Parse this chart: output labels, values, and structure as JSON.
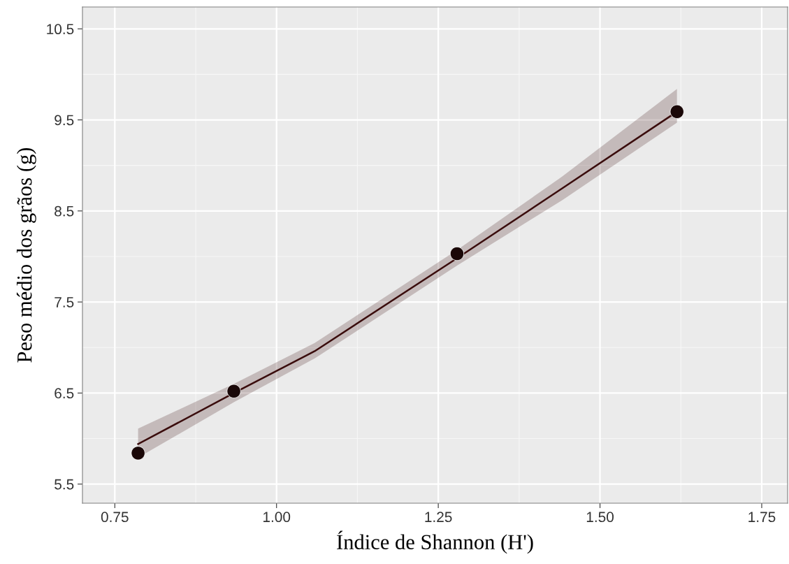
{
  "chart_data": {
    "type": "line",
    "xlabel": "Índice de Shannon (H')",
    "ylabel": "Peso médio dos grãos (g)",
    "xlim": [
      0.7,
      1.79
    ],
    "ylim": [
      5.29,
      10.74
    ],
    "xticks": [
      {
        "value": 0.75,
        "label": "0.75"
      },
      {
        "value": 1.0,
        "label": "1.00"
      },
      {
        "value": 1.25,
        "label": "1.25"
      },
      {
        "value": 1.5,
        "label": "1.50"
      },
      {
        "value": 1.75,
        "label": "1.75"
      }
    ],
    "yticks": [
      5.5,
      6.5,
      7.5,
      8.5,
      9.5,
      10.5
    ],
    "grid": true,
    "series": [
      {
        "color": "#3a0c0c",
        "x": [
          0.786,
          0.934,
          1.059,
          1.279,
          1.442,
          1.619
        ],
        "values": [
          5.94,
          6.5,
          6.96,
          7.98,
          8.75,
          9.59
        ],
        "lower": [
          5.79,
          6.4,
          6.88,
          7.9,
          8.62,
          9.47
        ],
        "upper": [
          6.11,
          6.6,
          7.05,
          8.07,
          8.88,
          9.84
        ]
      },
      {
        "type": "scatter",
        "marker": "circle",
        "color": "#1a0808",
        "x": [
          0.786,
          0.934,
          1.279,
          1.619
        ],
        "values": [
          5.84,
          6.52,
          8.03,
          9.59
        ]
      }
    ]
  }
}
